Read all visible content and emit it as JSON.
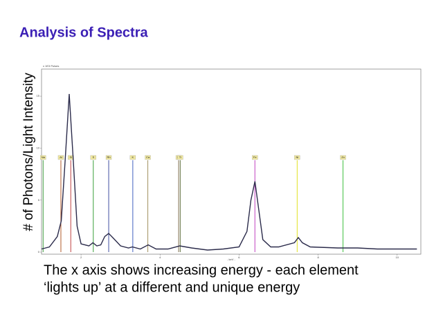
{
  "header": {
    "title": "Analysis of Spectra"
  },
  "y_label": "# of Photons/Light Intensity",
  "caption": [
    "The x axis shows increasing energy - each element",
    "‘lights up’ at a different and unique energy"
  ],
  "chart_data": {
    "type": "line",
    "unit_label": "x 1E3 Pulses",
    "x_label": "- keV -",
    "x": [
      1.0,
      1.2,
      1.4,
      1.5,
      1.6,
      1.7,
      1.8,
      1.9,
      2.0,
      2.2,
      2.3,
      2.4,
      2.5,
      2.6,
      2.7,
      2.8,
      2.9,
      3.0,
      3.2,
      3.3,
      3.5,
      3.7,
      3.9,
      4.2,
      4.5,
      4.8,
      5.2,
      5.6,
      6.0,
      6.2,
      6.3,
      6.4,
      6.5,
      6.6,
      6.8,
      7.0,
      7.4,
      7.5,
      7.6,
      7.8,
      8.5,
      9.0,
      9.5,
      10.0,
      10.5
    ],
    "values": [
      0.3,
      0.5,
      1.5,
      3,
      9,
      15.2,
      9,
      2.5,
      0.8,
      0.6,
      0.9,
      0.6,
      0.7,
      1.5,
      1.8,
      1.4,
      1.0,
      0.6,
      0.4,
      0.5,
      0.3,
      0.7,
      0.3,
      0.3,
      0.6,
      0.4,
      0.2,
      0.3,
      0.5,
      2,
      5,
      6.8,
      4,
      1.2,
      0.5,
      0.5,
      0.9,
      1.4,
      0.9,
      0.5,
      0.4,
      0.4,
      0.3,
      0.3,
      0.3
    ],
    "color": "#2a2a4a",
    "xlim": [
      1.0,
      10.6
    ],
    "ylim": [
      0,
      17.6
    ],
    "xticks": [
      2,
      4,
      6,
      8,
      10
    ],
    "yticks": [
      0,
      5,
      10,
      15
    ],
    "markers": [
      {
        "label": "Na",
        "x": 1.04,
        "color": "#3c9a3c"
      },
      {
        "label": "Al",
        "x": 1.49,
        "color": "#b05a2a"
      },
      {
        "label": "Si",
        "x": 1.74,
        "color": "#c04040"
      },
      {
        "label": "S",
        "x": 2.31,
        "color": "#3aa03a"
      },
      {
        "label": "Rh",
        "x": 2.7,
        "color": "#4050a0"
      },
      {
        "label": "K",
        "x": 3.31,
        "color": "#4060c0"
      },
      {
        "label": "Ca",
        "x": 3.69,
        "color": "#a09060"
      },
      {
        "label": "Ba",
        "x": 4.47,
        "color": "#807050"
      },
      {
        "label": "Ti",
        "x": 4.51,
        "color": "#607040"
      },
      {
        "label": "Fe",
        "x": 6.4,
        "color": "#c040c0"
      },
      {
        "label": "Ni",
        "x": 7.47,
        "color": "#e0e020"
      },
      {
        "label": "Zn",
        "x": 8.63,
        "color": "#40c040"
      }
    ]
  }
}
